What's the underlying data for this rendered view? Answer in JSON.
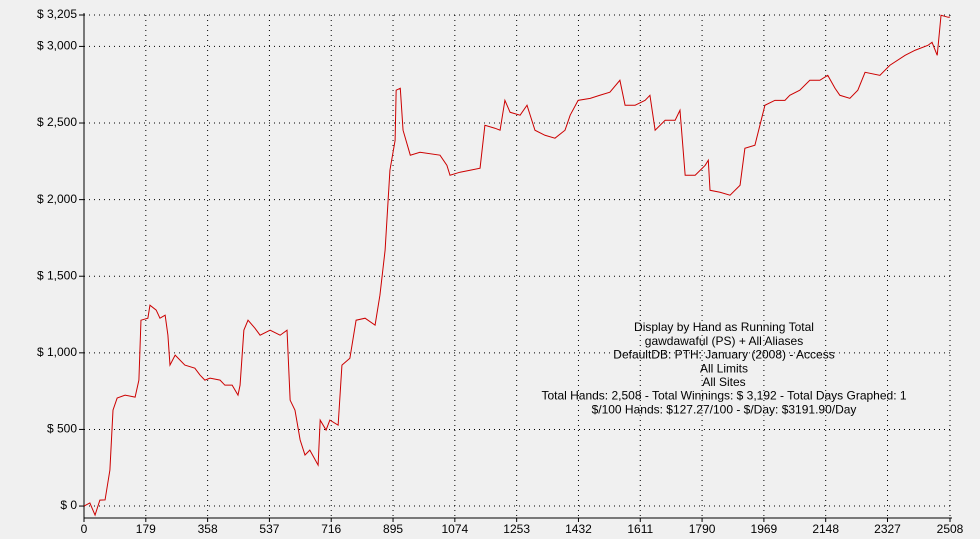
{
  "chart_data": {
    "type": "line",
    "annotations": [
      "Display by Hand as Running Total",
      "gawdawaful (PS) + All Aliases",
      "DefaultDB: PTH: January (2008) - Access",
      "All Limits",
      "All Sites",
      "Total Hands: 2,508 - Total Winnings: $ 3,192 - Total Days Graphed: 1",
      "$/100 Hands: $127.27/100 - $/Day: $3191.90/Day"
    ],
    "xlim": [
      0,
      2508
    ],
    "ylim": [
      -78,
      3205
    ],
    "xticks": [
      0,
      179,
      358,
      537,
      716,
      895,
      1074,
      1253,
      1432,
      1611,
      1790,
      1969,
      2148,
      2327,
      2508
    ],
    "yticks": [
      {
        "value": 0,
        "label": "$ 0"
      },
      {
        "value": 500,
        "label": "$ 500"
      },
      {
        "value": 1000,
        "label": "$ 1,000"
      },
      {
        "value": 1500,
        "label": "$ 1,500"
      },
      {
        "value": 2000,
        "label": "$ 2,000"
      },
      {
        "value": 2500,
        "label": "$ 2,500"
      },
      {
        "value": 3000,
        "label": "$ 3,000"
      },
      {
        "value": 3205,
        "label": "$ 3,205"
      }
    ],
    "grid": true,
    "series": [
      {
        "color": "#cc0000",
        "x": [
          0,
          17,
          32,
          46,
          61,
          75,
          84,
          96,
          119,
          148,
          159,
          165,
          185,
          191,
          209,
          220,
          235,
          243,
          249,
          264,
          292,
          321,
          336,
          350,
          365,
          394,
          408,
          429,
          446,
          452,
          463,
          475,
          495,
          510,
          539,
          568,
          588,
          597,
          611,
          626,
          640,
          654,
          678,
          684,
          701,
          712,
          736,
          747,
          770,
          788,
          814,
          843,
          857,
          872,
          886,
          901,
          904,
          916,
          924,
          945,
          973,
          1031,
          1051,
          1060,
          1089,
          1118,
          1147,
          1161,
          1190,
          1205,
          1219,
          1234,
          1263,
          1283,
          1306,
          1335,
          1364,
          1393,
          1408,
          1431,
          1466,
          1494,
          1523,
          1552,
          1567,
          1596,
          1625,
          1639,
          1654,
          1683,
          1712,
          1726,
          1741,
          1770,
          1799,
          1808,
          1813,
          1842,
          1871,
          1900,
          1914,
          1943,
          1972,
          2001,
          2030,
          2044,
          2073,
          2102,
          2131,
          2154,
          2175,
          2189,
          2218,
          2241,
          2262,
          2305,
          2334,
          2378,
          2407,
          2444,
          2456,
          2471,
          2482,
          2503,
          2508
        ],
        "values": [
          0,
          20,
          -59,
          39,
          40,
          235,
          626,
          705,
          724,
          711,
          822,
          1213,
          1226,
          1311,
          1279,
          1226,
          1246,
          1115,
          920,
          985,
          920,
          900,
          855,
          822,
          835,
          822,
          789,
          789,
          724,
          789,
          1148,
          1213,
          1161,
          1115,
          1148,
          1115,
          1148,
          691,
          626,
          431,
          333,
          365,
          267,
          561,
          496,
          561,
          528,
          920,
          965,
          1213,
          1226,
          1181,
          1376,
          1670,
          2192,
          2387,
          2714,
          2727,
          2453,
          2290,
          2309,
          2290,
          2224,
          2159,
          2179,
          2192,
          2205,
          2485,
          2466,
          2453,
          2648,
          2570,
          2551,
          2616,
          2453,
          2420,
          2401,
          2453,
          2551,
          2648,
          2661,
          2681,
          2701,
          2779,
          2616,
          2616,
          2648,
          2681,
          2453,
          2518,
          2518,
          2583,
          2159,
          2159,
          2224,
          2257,
          2061,
          2048,
          2029,
          2094,
          2335,
          2355,
          2616,
          2648,
          2648,
          2681,
          2714,
          2779,
          2779,
          2811,
          2727,
          2681,
          2661,
          2714,
          2831,
          2811,
          2877,
          2942,
          2975,
          3007,
          3027,
          2942,
          3203,
          3190,
          3192
        ]
      }
    ]
  }
}
